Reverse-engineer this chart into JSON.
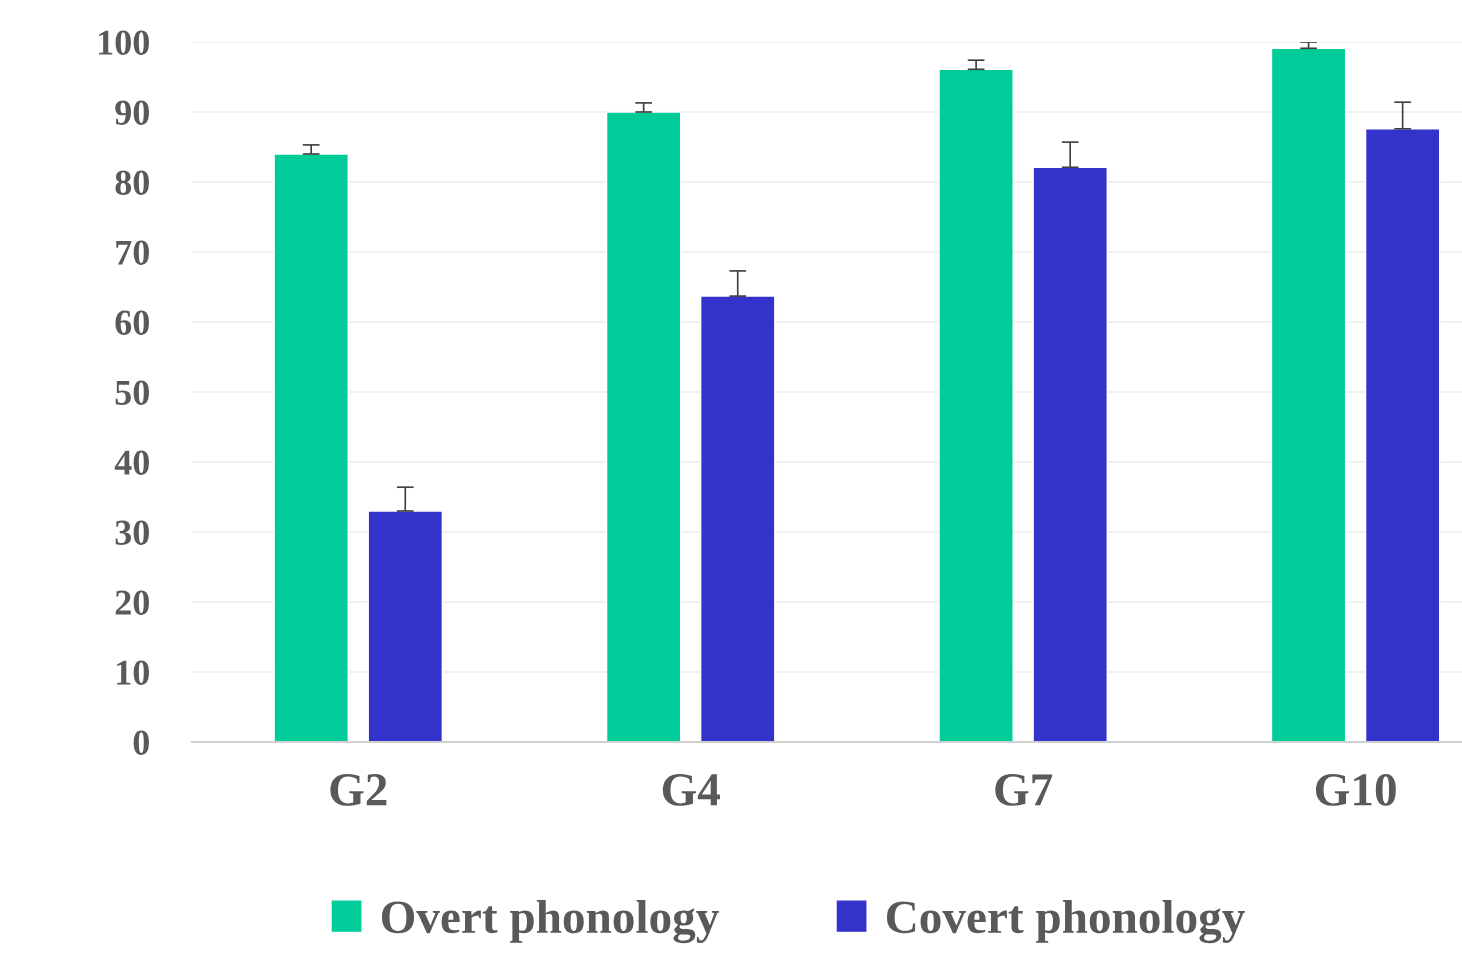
{
  "chart_data": {
    "type": "bar",
    "categories": [
      "G2",
      "G4",
      "G7",
      "G10"
    ],
    "series": [
      {
        "name": "Overt phonology",
        "color": "#00cc99",
        "values": [
          84,
          90,
          96.1,
          99.1
        ],
        "errors": [
          [
            84,
            85.3
          ],
          [
            90,
            91.3
          ],
          [
            96.1,
            97.4
          ],
          [
            99.1,
            100
          ]
        ]
      },
      {
        "name": "Covert phonology",
        "color": "#3333cc",
        "values": [
          33,
          63.7,
          82.1,
          87.6
        ],
        "errors": [
          [
            33,
            36.4
          ],
          [
            63.7,
            67.3
          ],
          [
            82.1,
            85.7
          ],
          [
            87.6,
            91.4
          ]
        ]
      }
    ],
    "ylim": [
      0,
      100
    ],
    "yticks": [
      0,
      10,
      20,
      30,
      40,
      50,
      60,
      70,
      80,
      90,
      100
    ],
    "grid": "y",
    "legend": "bottom"
  }
}
